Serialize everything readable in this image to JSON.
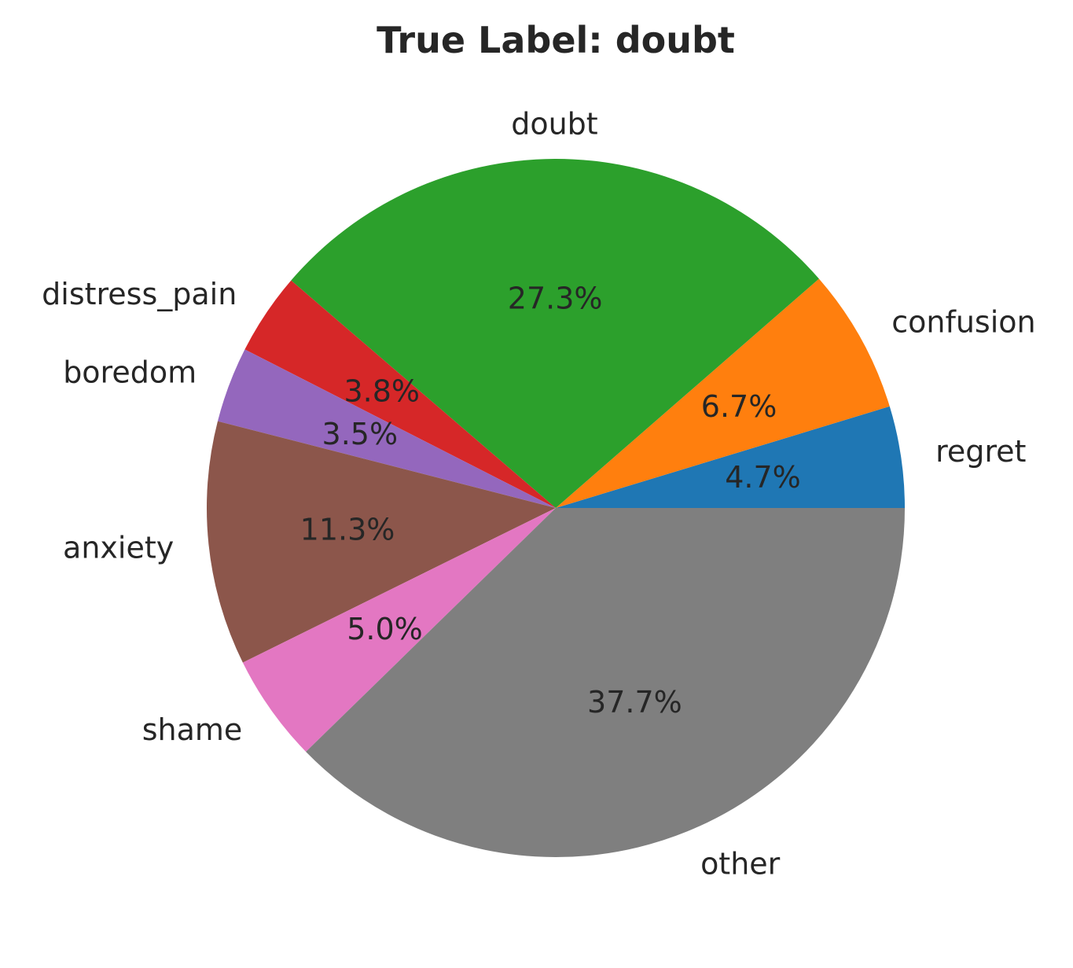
{
  "chart_data": {
    "type": "pie",
    "title": "True Label: doubt",
    "start_angle_deg": 0,
    "direction": "counterclockwise",
    "slices": [
      {
        "label": "regret",
        "value": 4.7,
        "pct_label": "4.7%",
        "color": "#1f77b4"
      },
      {
        "label": "confusion",
        "value": 6.7,
        "pct_label": "6.7%",
        "color": "#ff7f0e"
      },
      {
        "label": "doubt",
        "value": 27.3,
        "pct_label": "27.3%",
        "color": "#2ca02c"
      },
      {
        "label": "distress_pain",
        "value": 3.8,
        "pct_label": "3.8%",
        "color": "#d62728"
      },
      {
        "label": "boredom",
        "value": 3.5,
        "pct_label": "3.5%",
        "color": "#9467bd"
      },
      {
        "label": "anxiety",
        "value": 11.3,
        "pct_label": "11.3%",
        "color": "#8c564b"
      },
      {
        "label": "shame",
        "value": 5.0,
        "pct_label": "5.0%",
        "color": "#e377c2"
      },
      {
        "label": "other",
        "value": 37.7,
        "pct_label": "37.7%",
        "color": "#7f7f7f"
      }
    ]
  }
}
